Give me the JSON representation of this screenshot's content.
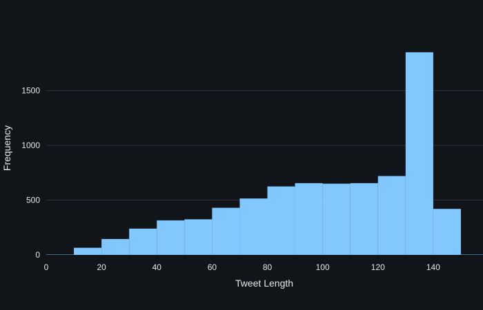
{
  "chart_data": {
    "type": "bar",
    "title": "",
    "xlabel": "Tweet Length",
    "ylabel": "Frequency",
    "bin_width": 10,
    "bins": [
      {
        "start": 0,
        "end": 10,
        "value": 3
      },
      {
        "start": 10,
        "end": 20,
        "value": 65
      },
      {
        "start": 20,
        "end": 30,
        "value": 145
      },
      {
        "start": 30,
        "end": 40,
        "value": 240
      },
      {
        "start": 40,
        "end": 50,
        "value": 315
      },
      {
        "start": 50,
        "end": 60,
        "value": 325
      },
      {
        "start": 60,
        "end": 70,
        "value": 430
      },
      {
        "start": 70,
        "end": 80,
        "value": 515
      },
      {
        "start": 80,
        "end": 90,
        "value": 625
      },
      {
        "start": 90,
        "end": 100,
        "value": 655
      },
      {
        "start": 100,
        "end": 110,
        "value": 650
      },
      {
        "start": 110,
        "end": 120,
        "value": 655
      },
      {
        "start": 120,
        "end": 130,
        "value": 720
      },
      {
        "start": 130,
        "end": 140,
        "value": 1850
      },
      {
        "start": 140,
        "end": 150,
        "value": 420
      },
      {
        "start": 150,
        "end": 160,
        "value": 3
      }
    ],
    "xlim": [
      0,
      158
    ],
    "ylim": [
      0,
      2000
    ],
    "x_ticks": [
      0,
      20,
      40,
      60,
      80,
      100,
      120,
      140
    ],
    "y_ticks": [
      0,
      500,
      1000,
      1500
    ],
    "grid": "horizontal",
    "colors": {
      "background": "#111419",
      "bar": "#80c8ff",
      "grid": "#2d3138",
      "text": "#e6e6e6"
    }
  }
}
